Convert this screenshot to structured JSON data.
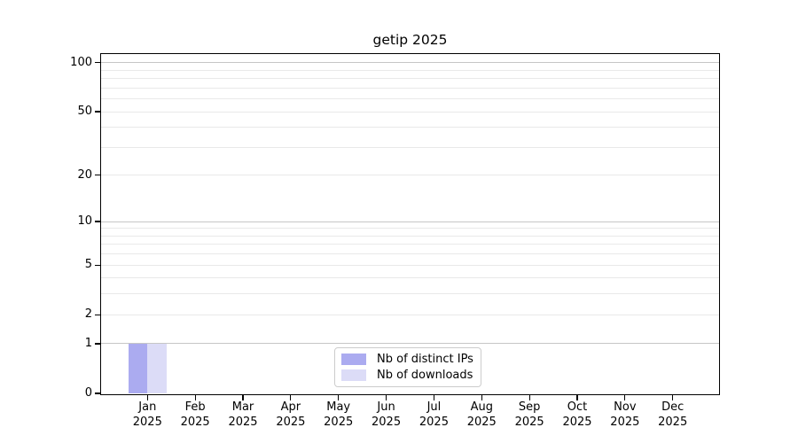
{
  "title": "getip 2025",
  "chart_data": {
    "type": "bar",
    "title": "getip 2025",
    "categories": [
      "Jan",
      "Feb",
      "Mar",
      "Apr",
      "May",
      "Jun",
      "Jul",
      "Aug",
      "Sep",
      "Oct",
      "Nov",
      "Dec"
    ],
    "category_year": "2025",
    "series": [
      {
        "name": "Nb of distinct IPs",
        "color": "#ababf0",
        "values": [
          1,
          0,
          0,
          0,
          0,
          0,
          0,
          0,
          0,
          0,
          0,
          0
        ]
      },
      {
        "name": "Nb of downloads",
        "color": "#dcdcf7",
        "values": [
          1,
          0,
          0,
          0,
          0,
          0,
          0,
          0,
          0,
          0,
          0,
          0
        ]
      }
    ],
    "xlabel": "",
    "ylabel": "",
    "yscale": "log1p",
    "yticks": [
      0,
      1,
      2,
      5,
      10,
      20,
      50,
      100
    ],
    "ylim": [
      0,
      113
    ],
    "gridlines": {
      "major": [
        1,
        10,
        100
      ],
      "minor": [
        2,
        3,
        4,
        5,
        6,
        7,
        8,
        9,
        20,
        30,
        40,
        50,
        60,
        70,
        80,
        90
      ]
    },
    "grid": true,
    "legend_position": "lower center"
  },
  "colors": {
    "background": "#ffffff",
    "bar_distinct_ips": "#ababf0",
    "bar_downloads": "#dcdcf7",
    "grid_major": "#c6c6c6",
    "grid_minor": "#e9e9e9",
    "axis": "#000000",
    "legend_border": "#cccccc"
  }
}
